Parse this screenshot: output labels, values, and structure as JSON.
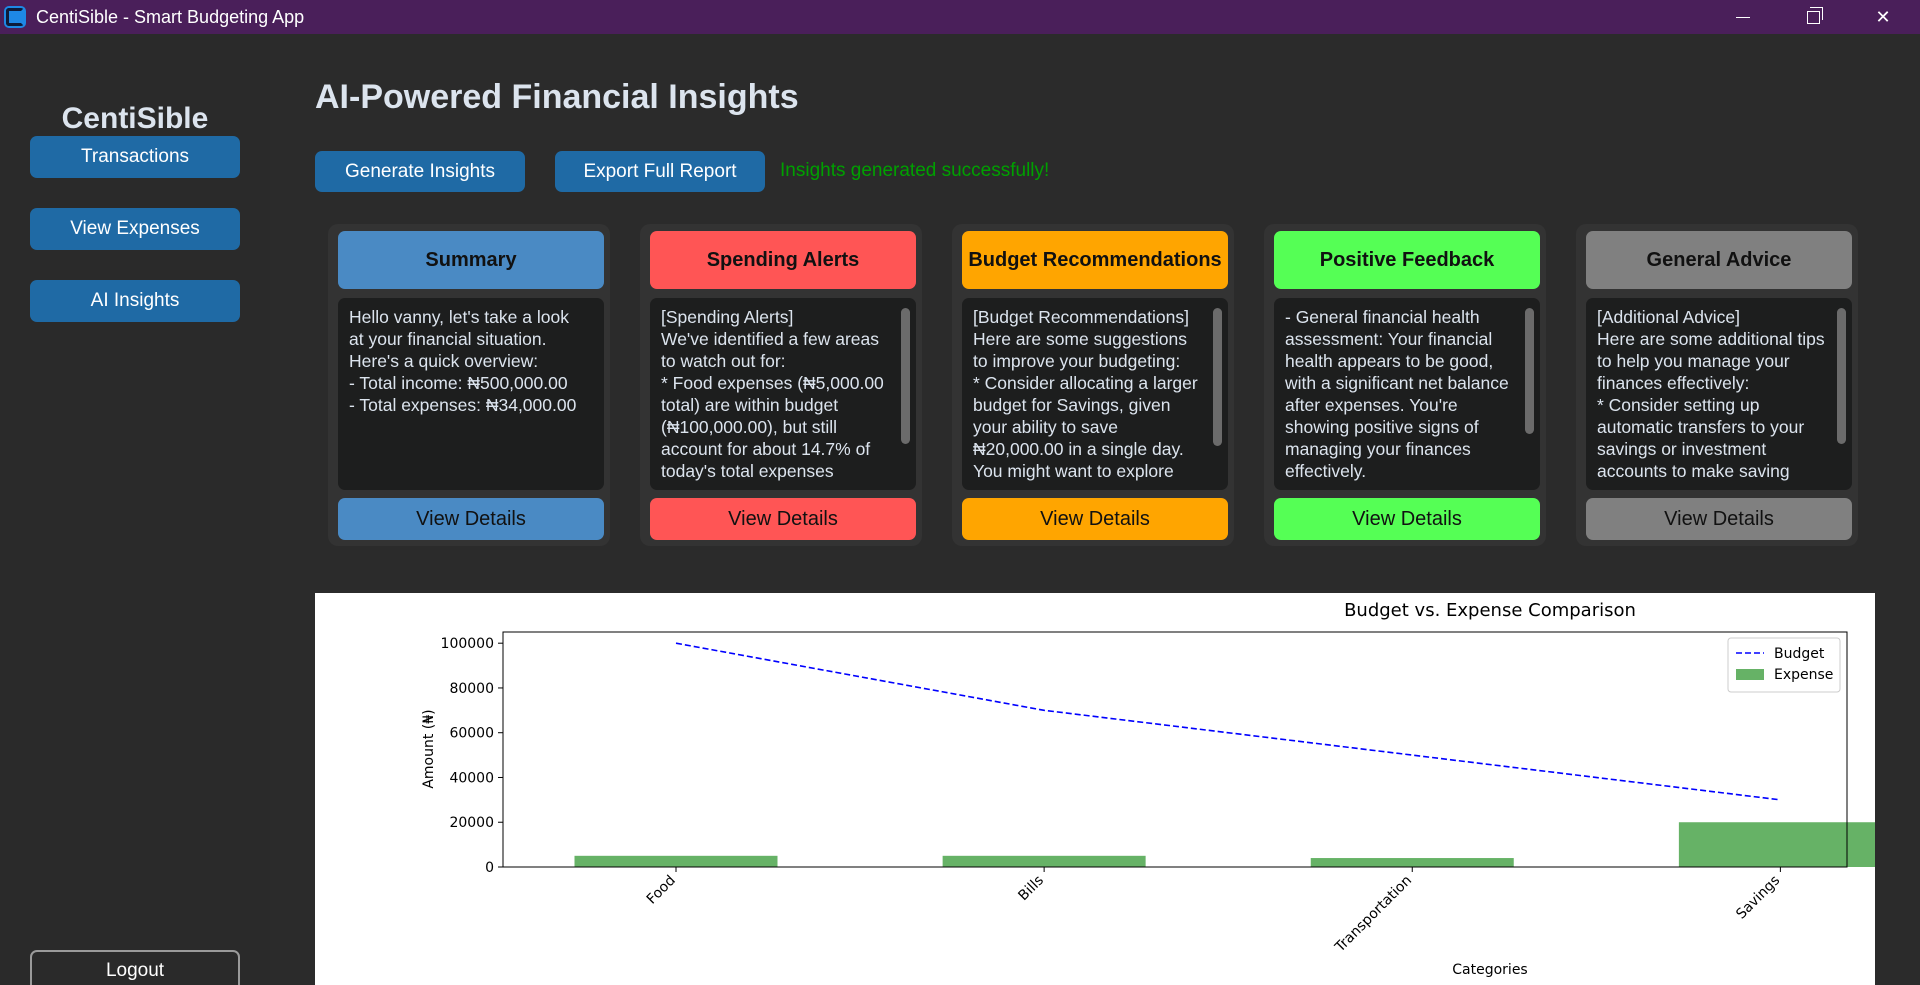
{
  "window": {
    "title": "CentiSible - Smart Budgeting App",
    "app_icon": "app-icon",
    "controls": [
      "minimize-icon",
      "restore-icon",
      "close-icon"
    ]
  },
  "sidebar": {
    "brand": "CentiSible",
    "items": [
      {
        "label": "Transactions"
      },
      {
        "label": "View Expenses"
      },
      {
        "label": "AI Insights"
      }
    ],
    "logout_label": "Logout"
  },
  "main": {
    "title": "AI-Powered Financial Insights",
    "generate_label": "Generate Insights",
    "export_label": "Export Full Report",
    "status": "Insights generated successfully!",
    "status_color": "#00a000"
  },
  "cards": [
    {
      "title": "Summary",
      "color": "#4a8ac4",
      "button": "View Details",
      "text": "Hello vanny, let's take a look at your financial situation. Here's a quick overview:\n- Total income: ₦500,000.00\n- Total expenses: ₦34,000.00"
    },
    {
      "title": "Spending Alerts",
      "color": "#ff5555",
      "button": "View Details",
      "text": "[Spending Alerts]\nWe've identified a few areas to watch out for:\n* Food expenses (₦5,000.00 total) are within budget (₦100,000.00), but still account for about 14.7% of today's total expenses"
    },
    {
      "title": "Budget Recommendations",
      "color": "#ffa500",
      "button": "View Details",
      "text": "[Budget Recommendations]\nHere are some suggestions to improve your budgeting:\n* Consider allocating a larger budget for Savings, given your ability to save ₦20,000.00 in a single day. You might want to explore"
    },
    {
      "title": "Positive Feedback",
      "color": "#55ff55",
      "button": "View Details",
      "text": "- General financial health assessment: Your financial health appears to be good, with a significant net balance after expenses. You're showing positive signs of managing your finances effectively."
    },
    {
      "title": "General Advice",
      "color": "#808080",
      "button": "View Details",
      "text": "[Additional Advice]\nHere are some additional tips to help you manage your finances effectively:\n* Consider setting up automatic transfers to your savings or investment accounts to make saving"
    }
  ],
  "chart_data": {
    "type": "bar",
    "title": "Budget vs. Expense Comparison",
    "xlabel": "Categories",
    "ylabel": "Amount (₦)",
    "categories": [
      "Food",
      "Bills",
      "Transportation",
      "Savings"
    ],
    "series": [
      {
        "name": "Budget",
        "kind": "line",
        "style": "dashed",
        "color": "#0000ff",
        "values": [
          100000,
          70000,
          50000,
          30000
        ]
      },
      {
        "name": "Expense",
        "kind": "bar",
        "color": "#66b266",
        "values": [
          5000,
          5000,
          4000,
          20000
        ]
      }
    ],
    "ylim": [
      0,
      105000
    ],
    "yticks": [
      0,
      20000,
      40000,
      60000,
      80000,
      100000
    ],
    "legend": "top-right",
    "grid": false
  }
}
